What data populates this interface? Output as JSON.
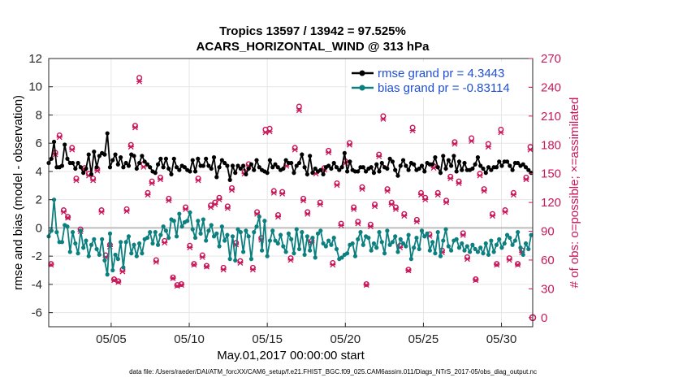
{
  "chart_data": {
    "type": "line",
    "title": "Tropics 13597 / 13942 = 97.525%",
    "subtitle": "ACARS_HORIZONTAL_WIND @ 313 hPa",
    "xlabel": "May.01,2017 00:00:00 start",
    "ylabel": "rmse and bias (model - observation)",
    "y2label": "# of obs: o=possible; ×=assimilated",
    "xlim": [
      1,
      32
    ],
    "ylim": [
      -7,
      12
    ],
    "y2lim": [
      -9.5,
      270
    ],
    "x_ticks": [
      5,
      10,
      15,
      20,
      25,
      30
    ],
    "x_tick_labels": [
      "05/05",
      "05/10",
      "05/15",
      "05/20",
      "05/25",
      "05/30"
    ],
    "y_ticks": [
      -6,
      -4,
      -2,
      0,
      2,
      4,
      6,
      8,
      10,
      12
    ],
    "y2_ticks": [
      0,
      30,
      60,
      90,
      120,
      150,
      180,
      210,
      240,
      270
    ],
    "legend_placement": "top-right",
    "series": [
      {
        "name": "rmse grand pr = 4.3443",
        "color": "#000000",
        "marker": "dot",
        "values": [
          4.6,
          4.9,
          6.1,
          4.3,
          4.3,
          4.4,
          5.9,
          4.9,
          4.6,
          4.6,
          4.2,
          4.6,
          4.3,
          3.9,
          4.2,
          5.2,
          3.8,
          5.4,
          4.3,
          5.1,
          5.3,
          5.2,
          6.7,
          4.3,
          4.8,
          5.2,
          4.5,
          5.0,
          4.3,
          4.6,
          4.4,
          5.2,
          5.1,
          4.2,
          4.6,
          5.1,
          4.7,
          4.5,
          4.3,
          4.0,
          3.9,
          4.5,
          4.9,
          4.3,
          4.9,
          4.2,
          3.8,
          4.9,
          4.3,
          4.1,
          4.4,
          4.3,
          4.1,
          4.0,
          4.8,
          4.0,
          4.9,
          4.4,
          4.4,
          4.9,
          4.4,
          4.2,
          5.0,
          3.6,
          4.3,
          4.8,
          4.6,
          4.4,
          3.4,
          4.4,
          3.9,
          4.4,
          4.2,
          4.4,
          3.8,
          4.2,
          4.5,
          4.1,
          4.8,
          4.3,
          4.1,
          4.0,
          3.9,
          4.8,
          4.3,
          4.5,
          4.3,
          4.1,
          4.2,
          4.8,
          4.6,
          4.6,
          3.9,
          4.4,
          4.6,
          5.2,
          4.3,
          3.8,
          5.1,
          3.9,
          4.2,
          4.0,
          4.1,
          3.8,
          4.3,
          4.4,
          4.2,
          4.6,
          4.3,
          4.1,
          4.3,
          5.3,
          4.0,
          4.7,
          4.1,
          4.0,
          4.0,
          4.3,
          4.3,
          4.0,
          4.2,
          4.3,
          3.9,
          4.5,
          4.0,
          4.6,
          4.3,
          4.2,
          4.9,
          4.7,
          4.1,
          3.7,
          4.4,
          4.8,
          4.4,
          4.1,
          4.6,
          4.5,
          4.1,
          4.2,
          4.4,
          4.0,
          4.6,
          4.5,
          4.5,
          5.0,
          4.3,
          3.9,
          5.1,
          4.2,
          4.8,
          4.4,
          5.1,
          4.0,
          4.7,
          4.1,
          4.6,
          4.1,
          4.1,
          4.2,
          4.5,
          5.0,
          4.4,
          4.2,
          3.9,
          4.3,
          4.1,
          4.3,
          4.3,
          4.7,
          4.4,
          4.7,
          4.7,
          4.4,
          4.1,
          4.6,
          4.6,
          4.4,
          4.5,
          4.3,
          4.1,
          3.9
        ]
      },
      {
        "name": "bias grand pr = -0.83114",
        "color": "#0c7f7f",
        "marker": "dot",
        "values": [
          -0.6,
          -0.2,
          2.0,
          -0.3,
          -1.0,
          -1.0,
          0.2,
          0.1,
          -1.7,
          -0.3,
          -1.1,
          -1.8,
          -0.2,
          -1.4,
          -0.9,
          -2.0,
          -1.2,
          -0.8,
          -1.5,
          -1.9,
          -0.8,
          -2.3,
          -3.3,
          -0.4,
          -3.0,
          -1.9,
          -2.2,
          -1.0,
          -2.8,
          -1.0,
          -0.6,
          -1.8,
          -1.2,
          -2.0,
          -1.1,
          -1.8,
          -0.8,
          -0.7,
          -0.3,
          -1.1,
          -0.3,
          -1.2,
          -0.5,
          0.1,
          -0.2,
          -0.7,
          0.6,
          0.5,
          -0.6,
          1.0,
          0.1,
          0.4,
          0.5,
          1.1,
          -0.1,
          -0.7,
          0.5,
          -0.4,
          0.6,
          -0.9,
          -0.2,
          0.2,
          -0.6,
          -0.4,
          -1.3,
          0.1,
          -0.9,
          -0.5,
          -2.2,
          -0.6,
          -2.3,
          -0.1,
          -0.3,
          -1.7,
          -0.2,
          -0.6,
          -2.2,
          -0.3,
          0.1,
          0.8,
          -1.6,
          0.5,
          -2.0,
          -0.9,
          -0.2,
          -0.9,
          -1.1,
          -0.5,
          -1.3,
          -1.7,
          -0.4,
          -0.8,
          -1.8,
          -0.1,
          -1.5,
          -0.3,
          -1.9,
          -0.6,
          -1.6,
          -0.7,
          -2.1,
          -0.4,
          -0.2,
          -1.1,
          -1.3,
          -0.9,
          -1.2,
          -0.7,
          -1.5,
          -2.2,
          -2.1,
          -1.9,
          -1.8,
          -1.2,
          -1.1,
          -2.0,
          -0.8,
          -0.3,
          -1.2,
          -0.6,
          -0.7,
          -1.6,
          -1.1,
          -1.4,
          -0.3,
          -1.0,
          -1.8,
          -0.2,
          -1.2,
          -1.0,
          -0.6,
          -1.7,
          -0.8,
          -1.1,
          -1.3,
          -0.5,
          -2.2,
          -1.4,
          -0.7,
          -1.5,
          -0.2,
          -0.6,
          -0.4,
          -1.6,
          -1.0,
          -1.8,
          -0.3,
          -2.0,
          -0.9,
          -0.1,
          -1.3,
          -1.6,
          -0.9,
          -0.8,
          -1.4,
          -1.1,
          -1.6,
          -1.3,
          -1.7,
          -1.2,
          -1.5,
          -1.7,
          -1.4,
          -1.8,
          -1.1,
          -1.9,
          -0.9,
          -1.7,
          -1.2,
          -0.8,
          -1.4,
          -1.1,
          -0.5,
          -0.7,
          -1.2,
          -0.9,
          -0.3,
          -1.4,
          -1.9,
          -1.1,
          -1.5,
          -0.5
        ]
      }
    ],
    "obs_possible": {
      "name": "possible",
      "marker": "o",
      "color": "#c8175a",
      "values": [
        56,
        172,
        190,
        112,
        105,
        177,
        145,
        92,
        156,
        150,
        145,
        155,
        112,
        65,
        76,
        40,
        38,
        50,
        113,
        180,
        200,
        250,
        160,
        130,
        142,
        60,
        146,
        80,
        124,
        42,
        34,
        35,
        115,
        75,
        56,
        145,
        65,
        54,
        117,
        120,
        125,
        52,
        116,
        135,
        78,
        59,
        152,
        160,
        52,
        110,
        83,
        196,
        197,
        132,
        107,
        131,
        160,
        62,
        177,
        220,
        124,
        110,
        80,
        152,
        120,
        156,
        174,
        57,
        140,
        98,
        163,
        182,
        115,
        100,
        136,
        35,
        97,
        118,
        170,
        210,
        134,
        120,
        115,
        75,
        108,
        50,
        198,
        102,
        130,
        125,
        87,
        158,
        130,
        70,
        122,
        147,
        183,
        142,
        88,
        63,
        187,
        40,
        150,
        134,
        181,
        108,
        56,
        196,
        112,
        62,
        130,
        56,
        70,
        146,
        178
      ]
    },
    "obs_assimilated": {
      "name": "assimilated",
      "marker": "x",
      "color": "#c8175a",
      "values": [
        55,
        170,
        188,
        110,
        104,
        175,
        143,
        90,
        154,
        148,
        143,
        153,
        110,
        63,
        74,
        39,
        37,
        48,
        111,
        178,
        198,
        246,
        157,
        128,
        140,
        58,
        144,
        78,
        122,
        41,
        33,
        34,
        113,
        73,
        55,
        143,
        63,
        53,
        115,
        118,
        123,
        50,
        114,
        133,
        76,
        57,
        150,
        158,
        50,
        108,
        81,
        193,
        194,
        130,
        105,
        129,
        158,
        60,
        175,
        216,
        122,
        108,
        78,
        150,
        118,
        154,
        172,
        55,
        138,
        96,
        161,
        180,
        113,
        98,
        134,
        34,
        95,
        116,
        168,
        207,
        132,
        118,
        113,
        73,
        106,
        49,
        195,
        100,
        128,
        123,
        85,
        156,
        128,
        68,
        120,
        145,
        181,
        140,
        86,
        61,
        184,
        39,
        148,
        132,
        178,
        106,
        55,
        193,
        110,
        60,
        128,
        55,
        68,
        144,
        175
      ]
    },
    "annotation_point": {
      "label": "0",
      "x": 32,
      "y2": 0
    }
  },
  "footer": "data file: /Users/raeder/DAI/ATM_forcXX/CAM6_setup/f.e21.FHIST_BGC.f09_025.CAM6assim.011/Diags_NTrS_2017-05/obs_diag_output.nc",
  "colors": {
    "rmse": "#000000",
    "bias": "#0c7f7f",
    "obs": "#c8175a",
    "legend_text": "#1f4fd6"
  }
}
